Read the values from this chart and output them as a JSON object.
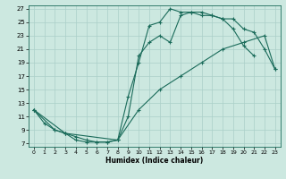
{
  "title": "",
  "xlabel": "Humidex (Indice chaleur)",
  "bg_color": "#cce8e0",
  "line_color": "#1a6b5a",
  "grid_color": "#aacfc8",
  "xlim": [
    -0.5,
    23.5
  ],
  "ylim": [
    6.5,
    27.5
  ],
  "xticks": [
    0,
    1,
    2,
    3,
    4,
    5,
    6,
    7,
    8,
    9,
    10,
    11,
    12,
    13,
    14,
    15,
    16,
    17,
    18,
    19,
    20,
    21,
    22,
    23
  ],
  "yticks": [
    7,
    9,
    11,
    13,
    15,
    17,
    19,
    21,
    23,
    25,
    27
  ],
  "line1_x": [
    0,
    1,
    2,
    3,
    4,
    5,
    6,
    7,
    8,
    9,
    10,
    11,
    12,
    13,
    14,
    15,
    16,
    17,
    18,
    19,
    20,
    21
  ],
  "line1_y": [
    12,
    10,
    9,
    8.5,
    7.5,
    7.2,
    7.2,
    7.2,
    7.5,
    11,
    20,
    22,
    23,
    22,
    26,
    26.5,
    26.5,
    26,
    25.5,
    24,
    21.5,
    20
  ],
  "line2_x": [
    0,
    2,
    3,
    4,
    5,
    6,
    7,
    8,
    9,
    10,
    11,
    12,
    13,
    14,
    15,
    16,
    17,
    18,
    19,
    20,
    21,
    22,
    23
  ],
  "line2_y": [
    12,
    9,
    8.5,
    8,
    7.5,
    7.2,
    7.2,
    7.5,
    14,
    19,
    24.5,
    25,
    27,
    26.5,
    26.5,
    26,
    26,
    25.5,
    25.5,
    24,
    23.5,
    21,
    18
  ],
  "line3_x": [
    0,
    3,
    8,
    10,
    12,
    14,
    16,
    18,
    20,
    22,
    23
  ],
  "line3_y": [
    12,
    8.5,
    7.5,
    12,
    15,
    17,
    19,
    21,
    22,
    23,
    18
  ]
}
